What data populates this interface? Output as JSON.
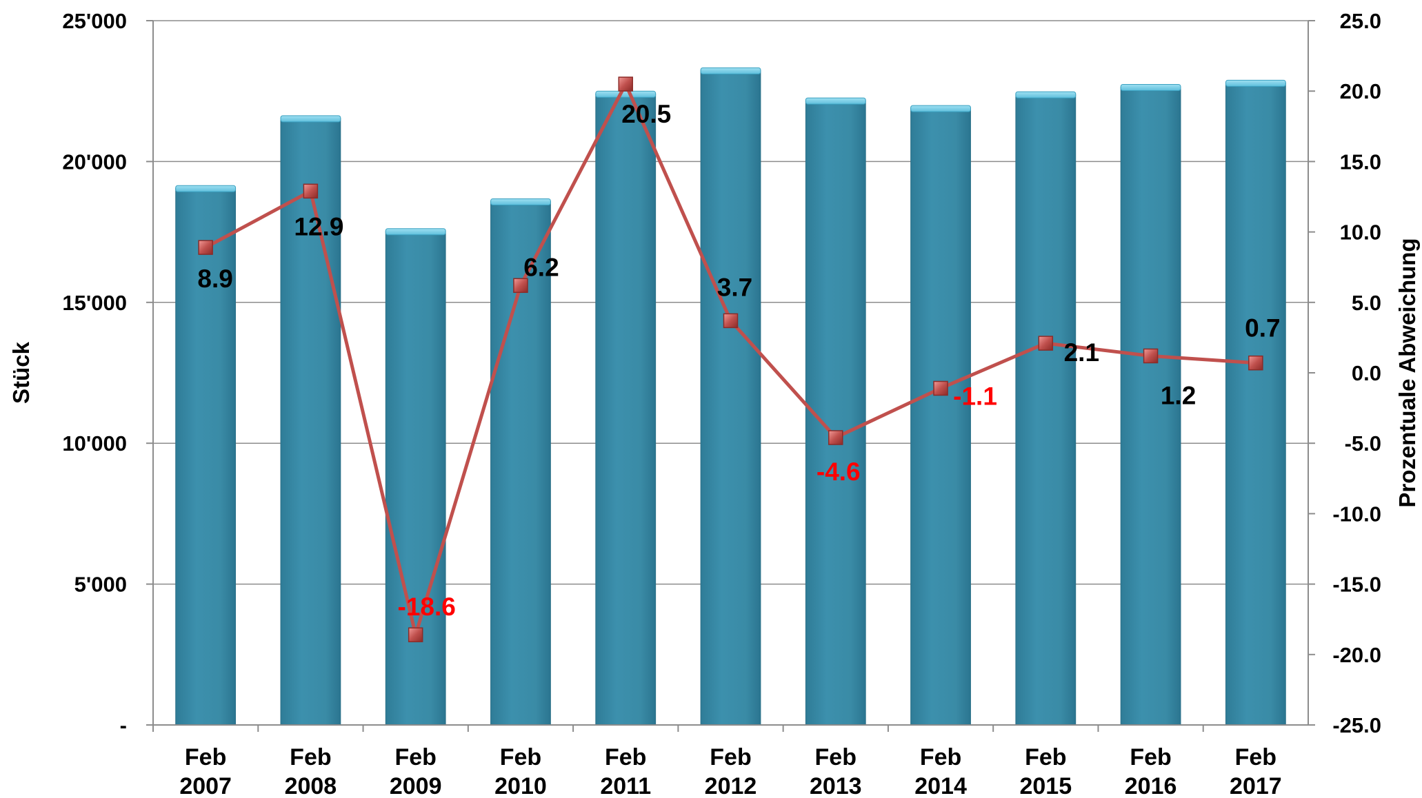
{
  "chart_data": {
    "type": "bar+line",
    "categories": [
      [
        "Feb",
        "2007"
      ],
      [
        "Feb",
        "2008"
      ],
      [
        "Feb",
        "2009"
      ],
      [
        "Feb",
        "2010"
      ],
      [
        "Feb",
        "2011"
      ],
      [
        "Feb",
        "2012"
      ],
      [
        "Feb",
        "2013"
      ],
      [
        "Feb",
        "2014"
      ],
      [
        "Feb",
        "2015"
      ],
      [
        "Feb",
        "2016"
      ],
      [
        "Feb",
        "2017"
      ]
    ],
    "bars": {
      "axis": "left",
      "values": [
        19050,
        21530,
        17520,
        18580,
        22400,
        23230,
        22160,
        21890,
        22380,
        22640,
        22790
      ],
      "color": "#3a8ba6"
    },
    "line": {
      "axis": "right",
      "values": [
        8.9,
        12.9,
        -18.6,
        6.2,
        20.5,
        3.7,
        -4.6,
        -1.1,
        2.1,
        1.2,
        0.7
      ],
      "labels": [
        "8.9",
        "12.9",
        "-18.6",
        "6.2",
        "20.5",
        "3.7",
        "-4.6",
        "-1.1",
        "2.1",
        "1.2",
        "0.7"
      ],
      "color": "#c0504d",
      "marker_color": "#c0504d",
      "label_positive_color": "#000000",
      "label_negative_color": "#ff0000"
    },
    "left_axis": {
      "title": "Stück",
      "range": [
        0,
        25000
      ],
      "ticks": [
        25000,
        20000,
        15000,
        10000,
        5000,
        0
      ],
      "tick_labels": [
        "25'000",
        "20'000",
        "15'000",
        "10'000",
        "5'000",
        "-"
      ]
    },
    "right_axis": {
      "title": "Prozentuale Abweichung",
      "range": [
        -25,
        25
      ],
      "ticks": [
        25,
        20,
        15,
        10,
        5,
        0,
        -5,
        -10,
        -15,
        -20,
        -25
      ],
      "tick_labels": [
        "25.0",
        "20.0",
        "15.0",
        "10.0",
        "5.0",
        "0.0",
        "-5.0",
        "-10.0",
        "-15.0",
        "-20.0",
        "-25.0"
      ],
      "negative_tick_color": "#ff0000"
    },
    "grid": true,
    "legend": "none"
  }
}
